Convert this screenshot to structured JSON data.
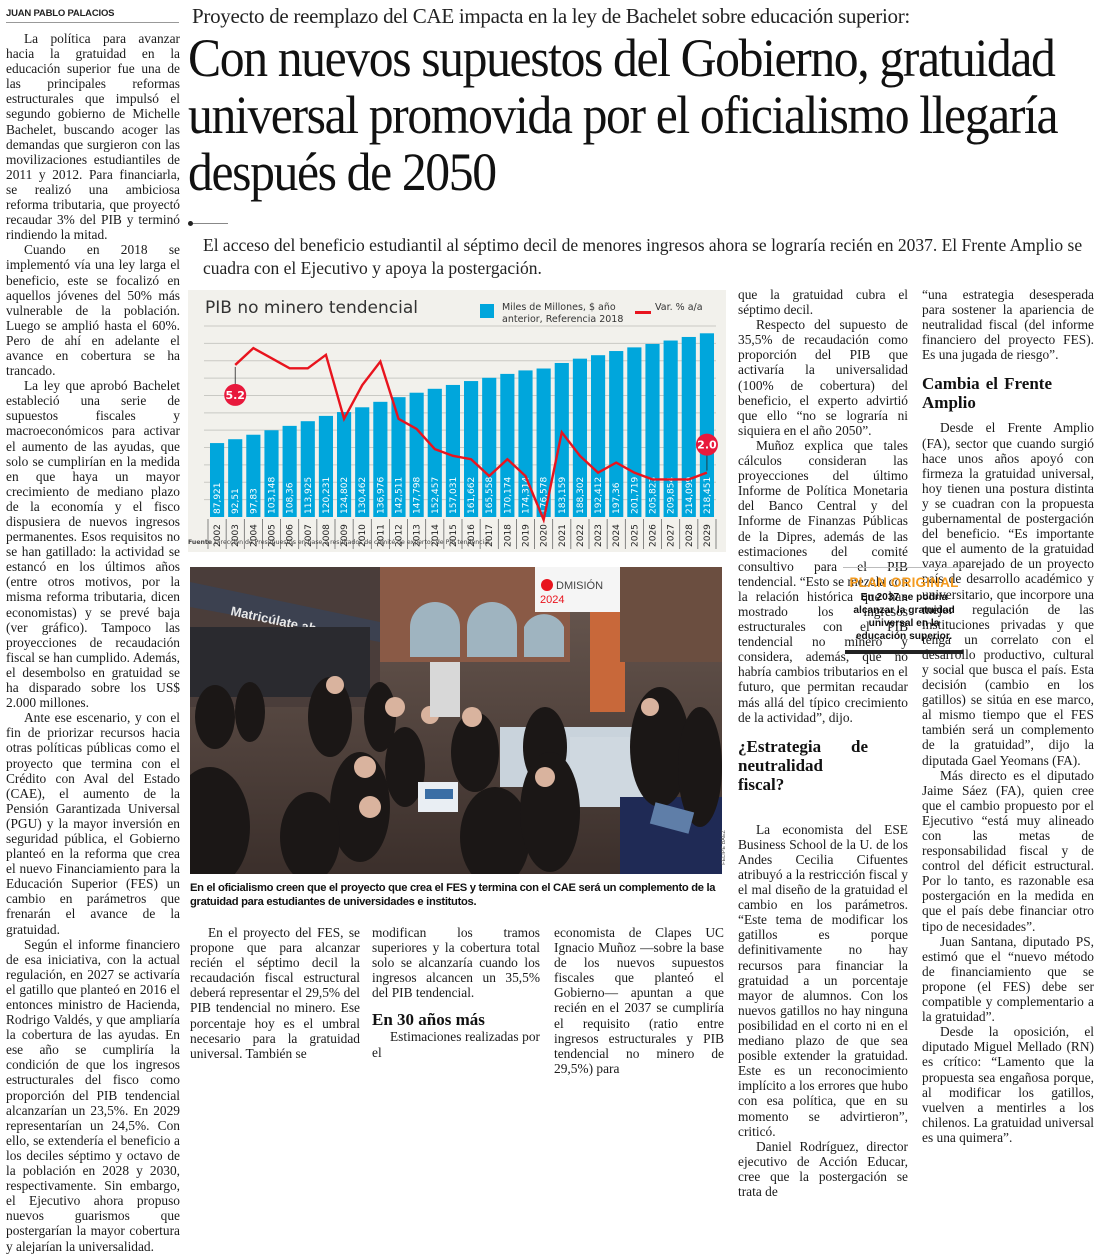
{
  "article": {
    "byline": "JUAN PABLO PALACIOS",
    "kicker": "Proyecto de reemplazo del CAE impacta en la ley de Bachelet sobre educación superior:",
    "headline": "Con nuevos supuestos del Gobierno, gratuidad universal promovida por el oficialismo llegaría después de 2050",
    "deck": "El acceso del beneficio estudiantil al séptimo decil de menores ingresos ahora se lograría recién en 2037. El Frente Amplio se cuadra con el Ejecutivo y apoya la postergación.",
    "col1": [
      "La política para avanzar hacia la gratuidad en la educación superior fue una de las principales reformas estructurales que impulsó el segundo gobierno de Michelle Bachelet, buscando acoger las demandas que surgieron con las movilizaciones estudiantiles de 2011 y 2012. Para financiarla, se realizó una ambiciosa reforma tributaria, que proyectó recaudar 3% del PIB y terminó rindiendo la mitad.",
      "Cuando en 2018 se implementó vía una ley larga el beneficio, este se focalizó en aquellos jóvenes del 50% más vulnerable de la población. Luego se amplió hasta el 60%. Pero de ahí en adelante el avance en cobertura se ha trancado.",
      "La ley que aprobó Bachelet estableció una serie de supuestos fiscales y macroeconómicos para activar el aumento de las ayudas, que solo se cumplirían en la medida en que haya un mayor crecimiento de mediano plazo de la economía y el fisco dispusiera de nuevos ingresos permanentes. Esos requisitos no se han gatillado: la actividad se estancó en los últimos años (entre otros motivos, por la misma reforma tributaria, dicen economistas) y se prevé baja (ver gráfico). Tampoco las proyecciones de recaudación fiscal se han cumplido. Además, el desembolso en gratuidad se ha disparado sobre los US$ 2.000 millones.",
      "Ante ese escenario, y con el fin de priorizar recursos hacia otras políticas públicas como el proyecto que termina con el Crédito con Aval del Estado (CAE), el aumento de la Pensión Garantizada Universal (PGU) y la mayor inversión en seguridad pública, el Gobierno planteó en la reforma que crea el nuevo Financiamiento para la Educación Superior (FES) un cambio en parámetros que frenarán el avance de la gratuidad.",
      "Según el informe financiero de esa iniciativa, con la actual regulación, en 2027 se activaría el gatillo que planteó en 2016 el entonces ministro de Hacienda, Rodrigo Valdés, y que ampliaría la cobertura de las ayudas. En ese año se cumpliría la condición de que los ingresos estructurales del fisco como proporción del PIB tendencial alcanzarían un 23,5%. En 2029 representarían un 24,5%. Con ello, se extendería el beneficio a los deciles séptimo y octavo de la población en 2028 y 2030, respectivamente. Sin embargo, el Ejecutivo ahora propuso nuevos guarismos que postergarían la mayor cobertura y alejarían la universalidad."
    ],
    "col2": [
      "En el proyecto del FES, se propone que para alcanzar recién el séptimo decil la recaudación fiscal estructural deberá representar el 29,5% del PIB tendencial no minero. Ese porcentaje hoy es el umbral necesario para la gratuidad universal. También se"
    ],
    "col3_start": "modifican los tramos superiores y la cobertura total solo se alcanzaría cuando los ingresos alcancen un 35,5% del PIB tendencial.",
    "subhead_30": "En 30 años más",
    "col3_after": "Estimaciones realizadas por el",
    "col4_bottom": "economista de Clapes UC Ignacio Muñoz —sobre la base de los nuevos supuestos fiscales que planteó el Gobierno— apuntan a que recién en el 2037 se cumpliría el requisito (ratio entre ingresos estructurales y PIB tendencial no minero de 29,5%) para",
    "col4_top": [
      "que la gratuidad cubra el séptimo decil.",
      "Respecto del supuesto de 35,5% de recaudación como proporción del PIB que activaría la universalidad (100% de cobertura) del beneficio, el experto advirtió que ello “no se lograría ni siquiera en el año 2050”.",
      "Muñoz explica que tales cálculos consideran las proyecciones del último Informe de Política Monetaria del Banco Central y del Informe de Finanzas Públicas de la Dipres, además de las estimaciones del comité consultivo para el PIB tendencial. “Esto se mezcla con la relación histórica que han mostrado los ingresos estructurales con el PIB tendencial no minero y considera, además, que no habría cambios tributarios en el futuro, que permitan recaudar más allá del típico crecimiento de la actividad”, dijo."
    ],
    "subhead_estrategia": "¿Estrategia de neutralidad fiscal?",
    "col4_bottom2": [
      "La economista del ESE Business School de la U. de los Andes Cecilia Cifuentes atribuyó a la restricción fiscal y el mal diseño de la gratuidad el cambio en los parámetros. “Este tema de modificar los gatillos es porque definitivamente no hay recursos para financiar la gratuidad a un porcentaje mayor de alumnos. Con los nuevos gatillos no hay ninguna posibilidad en el corto ni en el mediano plazo de que sea posible extender la gratuidad. Este es un reconocimiento implícito a los errores que hubo con esa política, que en su momento se advirtieron”, criticó.",
      "Daniel Rodríguez, director ejecutivo de Acción Educar, cree que la postergación se trata de"
    ],
    "col5_top": [
      "“una estrategia desesperada para sostener la apariencia de neutralidad fiscal (del informe financiero del proyecto FES). Es una jugada de riesgo”."
    ],
    "subhead_frente": "Cambia el Frente Amplio",
    "col5_mid": "Desde el Frente Amplio (FA), sector que cuando surgió hace unos años apoyó con firmeza la gratuidad universal, hoy tienen una postura distinta y se cuadran con la propuesta gubernamental de postergación del beneficio. “Es importante que el aumento de la gratuidad vaya aparejado de un proyecto país de desarrollo académico y universitario, que incorpore una mejor regulación de las instituciones privadas y que tenga un correlato con el desarrollo productivo, cultural y social que busca el país. Esta decisión (cambio en los gatillos) se sitúa en ese marco, al mismo tiempo que el FES también será un complemento de la gratuidad”, dijo la diputada Gael Yeomans (FA).",
    "col5_rest": [
      "Más directo es el diputado Jaime Sáez (FA), quien cree que el cambio propuesto por el Ejecutivo “está muy alineado con las metas de responsabilidad fiscal y de control del déficit estructural. Por lo tanto, es razonable esa postergación en la medida en que el país debe financiar otro tipo de necesidades”.",
      "Juan Santana, diputado PS, estimó que el “nuevo método de financiamiento que se propone (el FES) debe ser compatible y complementario a la gratuidad”.",
      "Desde la oposición, el diputado Miguel Mellado (RN) es crítico: “Lamento que la propuesta sea engañosa porque, al modificar los gatillos, vuelven a mentirles a los chilenos. La gratuidad universal es una quimera”."
    ],
    "callout": {
      "title": "PLAN ORIGINAL",
      "text": "En 2037 se podría alcanzar la gratuidad universal en la educación superior."
    },
    "photo": {
      "sign_left": "Matricúlate ahora",
      "sign_right": "ADMISIÓN 2024",
      "credit": "FELIPE BÁEZ",
      "caption": "En el oficialismo creen que el proyecto que crea el FES y termina con el CAE será un complemento de la gratuidad para estudiantes de universidades e institutos."
    }
  },
  "colors": {
    "bar": "#00a6dc",
    "line": "#e8141e",
    "badge": "#e8193c",
    "callout_title": "#f39a1e",
    "chart_bg": "#f2f1ec"
  },
  "chart_data": {
    "type": "bar",
    "title": "PIB no minero tendencial",
    "legend": [
      {
        "type": "bar",
        "label": "Miles de Millones, $ año anterior, Referencia 2018"
      },
      {
        "type": "line",
        "label": "Var. % a/a"
      }
    ],
    "legend_position": "top-right",
    "categories": [
      "2002",
      "2003",
      "2004",
      "2005",
      "2006",
      "2007",
      "2008",
      "2009",
      "2010",
      "2011",
      "2012",
      "2013",
      "2014",
      "2015",
      "2016",
      "2017",
      "2018",
      "2019",
      "2020",
      "2021",
      "2022",
      "2023",
      "2024",
      "2025",
      "2026",
      "2027",
      "2028",
      "2029"
    ],
    "series": [
      {
        "name": "Miles de Millones, $ año anterior, Referencia 2018",
        "type": "bar",
        "values": [
          87.921,
          92.51,
          97.83,
          103.148,
          108.36,
          113.925,
          120.231,
          124.802,
          130.462,
          136.976,
          142.511,
          147.798,
          152.457,
          157.031,
          161.662,
          165.558,
          170.174,
          174.314,
          176.578,
          183.159,
          188.302,
          192.412,
          197.36,
          201.719,
          205.823,
          209.854,
          214.099,
          218.451
        ],
        "labels": [
          "87,921",
          "92,51",
          "97,83",
          "103,148",
          "108,36",
          "113,925",
          "120,231",
          "124,802",
          "130,462",
          "136,976",
          "142,511",
          "147,798",
          "152,457",
          "157,031",
          "161,662",
          "165,558",
          "170,174",
          "174,314",
          "176,578",
          "183,159",
          "188,302",
          "192,412",
          "197,36",
          "201,719",
          "205,823",
          "209,854",
          "214,099",
          "218,451"
        ]
      },
      {
        "name": "Var. % a/a",
        "type": "line",
        "start_index": 1,
        "values": [
          5.2,
          5.7,
          5.4,
          5.1,
          5.1,
          5.5,
          3.6,
          4.6,
          5.3,
          3.6,
          3.3,
          2.7,
          2.5,
          2.4,
          1.9,
          2.4,
          1.9,
          0.6,
          3.2,
          2.5,
          2.0,
          2.3,
          2.0,
          1.8,
          1.8,
          1.8,
          2.0
        ],
        "annotations": [
          {
            "category": "2003",
            "label": "5.2"
          },
          {
            "category": "2029",
            "label": "2.0"
          }
        ]
      }
    ],
    "ylim_bars": [
      0,
      220
    ],
    "ylim_line": [
      0,
      6
    ],
    "grid": true,
    "source_label": "Fuente",
    "source": "Dirección de Presupuestos en base a resultados de comité de expertos de PIB tendencial."
  }
}
